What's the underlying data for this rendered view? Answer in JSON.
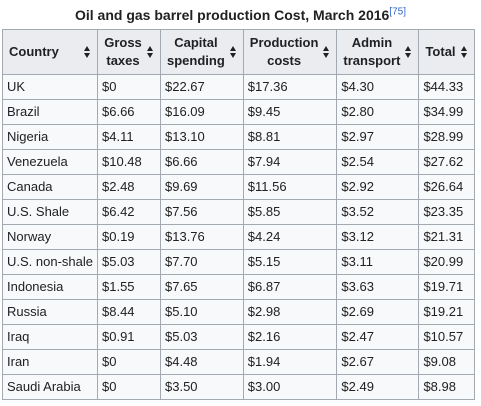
{
  "caption": {
    "title": "Oil and gas barrel production Cost, March 2016",
    "ref": "[75]"
  },
  "table": {
    "headers": [
      {
        "line1": "Country",
        "line2": ""
      },
      {
        "line1": "Gross",
        "line2": "taxes"
      },
      {
        "line1": "Capital",
        "line2": "spending"
      },
      {
        "line1": "Production",
        "line2": "costs"
      },
      {
        "line1": "Admin",
        "line2": "transport"
      },
      {
        "line1": "Total",
        "line2": ""
      }
    ],
    "rows": [
      [
        "UK",
        "$0",
        "$22.67",
        "$17.36",
        "$4.30",
        "$44.33"
      ],
      [
        "Brazil",
        "$6.66",
        "$16.09",
        "$9.45",
        "$2.80",
        "$34.99"
      ],
      [
        "Nigeria",
        "$4.11",
        "$13.10",
        "$8.81",
        "$2.97",
        "$28.99"
      ],
      [
        "Venezuela",
        "$10.48",
        "$6.66",
        "$7.94",
        "$2.54",
        "$27.62"
      ],
      [
        "Canada",
        "$2.48",
        "$9.69",
        "$11.56",
        "$2.92",
        "$26.64"
      ],
      [
        "U.S. Shale",
        "$6.42",
        "$7.56",
        "$5.85",
        "$3.52",
        "$23.35"
      ],
      [
        "Norway",
        "$0.19",
        "$13.76",
        "$4.24",
        "$3.12",
        "$21.31"
      ],
      [
        "U.S. non-shale",
        "$5.03",
        "$7.70",
        "$5.15",
        "$3.11",
        "$20.99"
      ],
      [
        "Indonesia",
        "$1.55",
        "$7.65",
        "$6.87",
        "$3.63",
        "$19.71"
      ],
      [
        "Russia",
        "$8.44",
        "$5.10",
        "$2.98",
        "$2.69",
        "$19.21"
      ],
      [
        "Iraq",
        "$0.91",
        "$5.03",
        "$2.16",
        "$2.47",
        "$10.57"
      ],
      [
        "Iran",
        "$0",
        "$4.48",
        "$1.94",
        "$2.67",
        "$9.08"
      ],
      [
        "Saudi Arabia",
        "$0",
        "$3.50",
        "$3.00",
        "$2.49",
        "$8.98"
      ]
    ]
  },
  "icons": {
    "sort": "sort-arrows-icon"
  },
  "colors": {
    "header_bg": "#eaecf0",
    "cell_bg": "#f8f9fa",
    "border": "#a2a9b1",
    "text": "#202122",
    "link": "#3366cc"
  }
}
